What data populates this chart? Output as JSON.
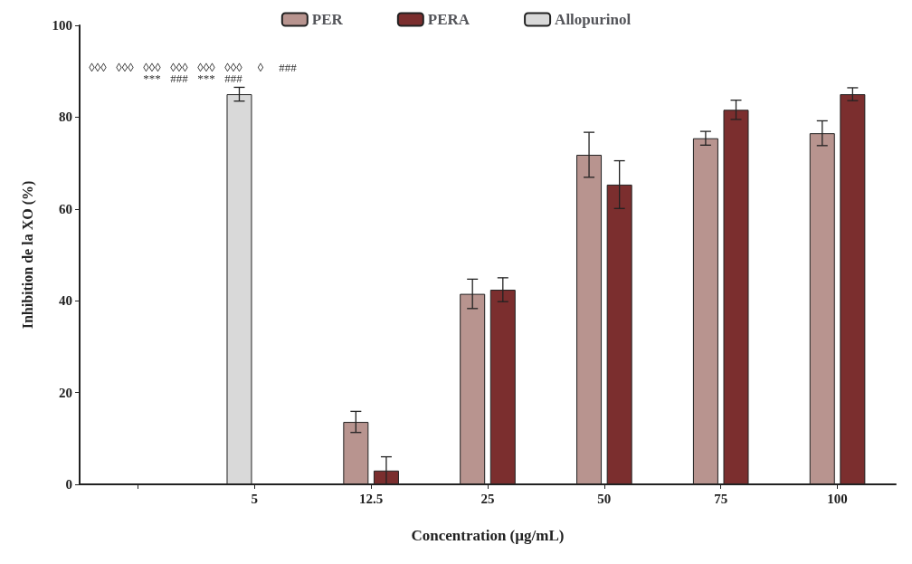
{
  "chart_data": {
    "type": "bar",
    "xlabel": "Concentration (µg/mL)",
    "ylabel": "Inhibition de la XO (%)",
    "categories": [
      null,
      "5",
      "12.5",
      "25",
      "50",
      "75",
      "100"
    ],
    "series": [
      {
        "name": "PER",
        "color": "#b8948f",
        "values": [
          null,
          null,
          13.6,
          41.5,
          71.8,
          75.4,
          76.5
        ],
        "errors": [
          null,
          null,
          2.3,
          3.2,
          4.9,
          1.5,
          2.7
        ]
      },
      {
        "name": "PERA",
        "color": "#7b2e2e",
        "values": [
          null,
          null,
          3,
          42.4,
          65.3,
          81.6,
          85
        ],
        "errors": [
          null,
          null,
          3,
          2.6,
          5.2,
          2.1,
          1.4
        ]
      },
      {
        "name": "Allopurinol",
        "color": "#d9d9d9",
        "values": [
          null,
          85,
          null,
          null,
          null,
          null,
          null
        ],
        "errors": [
          null,
          1.5,
          null,
          null,
          null,
          null,
          null
        ]
      }
    ],
    "ylim": [
      0,
      100
    ],
    "yticks": [
      0,
      20,
      40,
      60,
      80,
      100
    ],
    "grid": false,
    "legend": "top",
    "annotations": [
      "◊◊◊",
      "◊◊◊",
      "◊◊◊\n***",
      "◊◊◊\n###",
      "◊◊◊\n***",
      "◊◊◊\n###",
      "◊",
      "###"
    ]
  }
}
